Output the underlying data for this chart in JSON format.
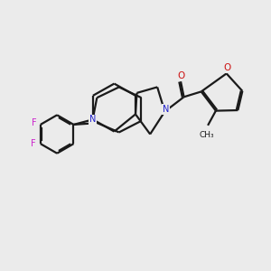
{
  "background_color": "#ebebeb",
  "bond_color": "#1a1a1a",
  "N_color": "#2222cc",
  "O_color": "#cc1111",
  "F_color": "#cc22cc",
  "line_width": 1.6,
  "figsize": [
    3.0,
    3.0
  ],
  "dpi": 100,
  "xlim": [
    0,
    10
  ],
  "ylim": [
    0,
    10
  ]
}
